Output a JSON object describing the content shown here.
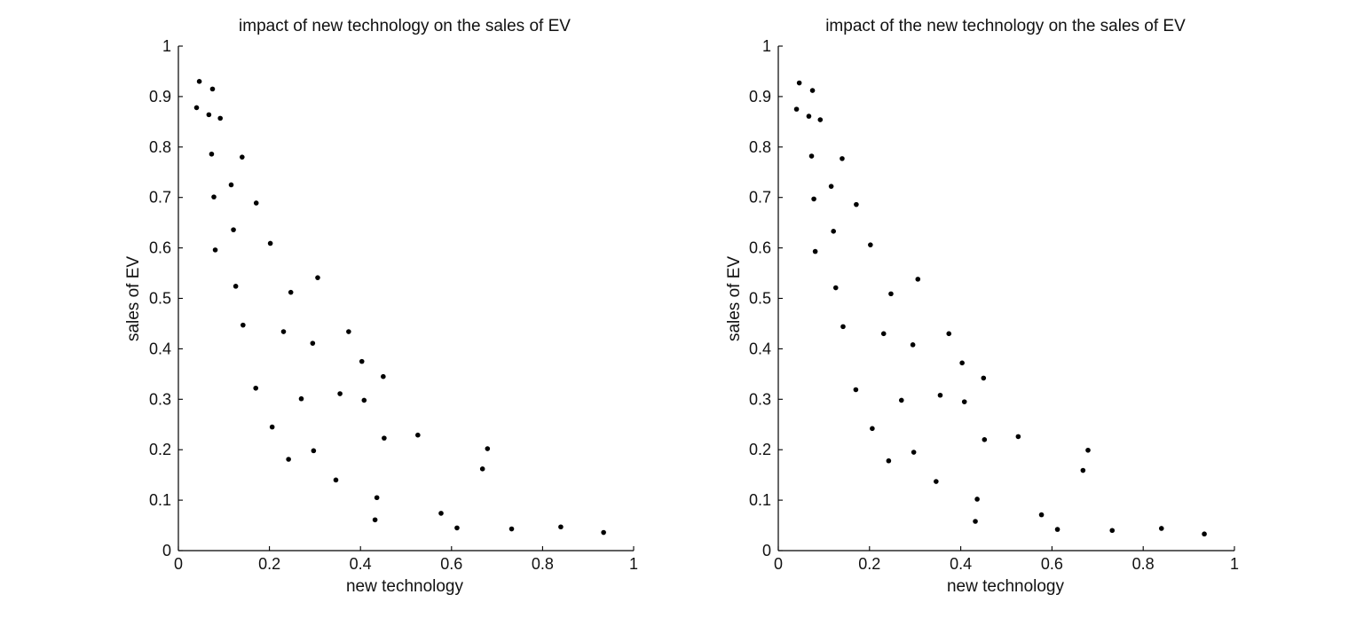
{
  "chart_data": [
    {
      "type": "scatter",
      "title": "impact of new technology on the sales of EV",
      "xlabel": "new technology",
      "ylabel": "sales of EV",
      "xlim": [
        0,
        1
      ],
      "ylim": [
        0,
        1
      ],
      "xticks": [
        "0",
        "0.2",
        "0.4",
        "0.6",
        "0.8",
        "1"
      ],
      "yticks": [
        "0",
        "0.1",
        "0.2",
        "0.3",
        "0.4",
        "0.5",
        "0.6",
        "0.7",
        "0.8",
        "0.9",
        "1"
      ],
      "grid": false,
      "marker_color": "#000000",
      "points": [
        {
          "x": 0.046,
          "y": 0.93
        },
        {
          "x": 0.075,
          "y": 0.915
        },
        {
          "x": 0.04,
          "y": 0.878
        },
        {
          "x": 0.067,
          "y": 0.864
        },
        {
          "x": 0.092,
          "y": 0.857
        },
        {
          "x": 0.073,
          "y": 0.786
        },
        {
          "x": 0.14,
          "y": 0.78
        },
        {
          "x": 0.116,
          "y": 0.725
        },
        {
          "x": 0.078,
          "y": 0.701
        },
        {
          "x": 0.171,
          "y": 0.689
        },
        {
          "x": 0.121,
          "y": 0.636
        },
        {
          "x": 0.202,
          "y": 0.609
        },
        {
          "x": 0.081,
          "y": 0.596
        },
        {
          "x": 0.306,
          "y": 0.541
        },
        {
          "x": 0.126,
          "y": 0.524
        },
        {
          "x": 0.247,
          "y": 0.512
        },
        {
          "x": 0.142,
          "y": 0.447
        },
        {
          "x": 0.231,
          "y": 0.434
        },
        {
          "x": 0.374,
          "y": 0.434
        },
        {
          "x": 0.295,
          "y": 0.411
        },
        {
          "x": 0.403,
          "y": 0.375
        },
        {
          "x": 0.45,
          "y": 0.345
        },
        {
          "x": 0.17,
          "y": 0.322
        },
        {
          "x": 0.355,
          "y": 0.311
        },
        {
          "x": 0.27,
          "y": 0.301
        },
        {
          "x": 0.408,
          "y": 0.298
        },
        {
          "x": 0.206,
          "y": 0.245
        },
        {
          "x": 0.526,
          "y": 0.229
        },
        {
          "x": 0.452,
          "y": 0.223
        },
        {
          "x": 0.679,
          "y": 0.202
        },
        {
          "x": 0.297,
          "y": 0.198
        },
        {
          "x": 0.242,
          "y": 0.181
        },
        {
          "x": 0.668,
          "y": 0.162
        },
        {
          "x": 0.346,
          "y": 0.14
        },
        {
          "x": 0.436,
          "y": 0.105
        },
        {
          "x": 0.577,
          "y": 0.074
        },
        {
          "x": 0.432,
          "y": 0.061
        },
        {
          "x": 0.612,
          "y": 0.045
        },
        {
          "x": 0.732,
          "y": 0.043
        },
        {
          "x": 0.84,
          "y": 0.047
        },
        {
          "x": 0.934,
          "y": 0.036
        }
      ]
    },
    {
      "type": "scatter",
      "title": "impact of the new technology on the sales of EV",
      "xlabel": "new technology",
      "ylabel": "sales of EV",
      "xlim": [
        0,
        1
      ],
      "ylim": [
        0,
        1
      ],
      "xticks": [
        "0",
        "0.2",
        "0.4",
        "0.6",
        "0.8",
        "1"
      ],
      "yticks": [
        "0",
        "0.1",
        "0.2",
        "0.3",
        "0.4",
        "0.5",
        "0.6",
        "0.7",
        "0.8",
        "0.9",
        "1"
      ],
      "grid": false,
      "marker_color": "#000000",
      "points": [
        {
          "x": 0.046,
          "y": 0.927
        },
        {
          "x": 0.075,
          "y": 0.912
        },
        {
          "x": 0.04,
          "y": 0.875
        },
        {
          "x": 0.067,
          "y": 0.861
        },
        {
          "x": 0.092,
          "y": 0.854
        },
        {
          "x": 0.073,
          "y": 0.782
        },
        {
          "x": 0.14,
          "y": 0.777
        },
        {
          "x": 0.116,
          "y": 0.722
        },
        {
          "x": 0.078,
          "y": 0.697
        },
        {
          "x": 0.171,
          "y": 0.686
        },
        {
          "x": 0.121,
          "y": 0.633
        },
        {
          "x": 0.202,
          "y": 0.606
        },
        {
          "x": 0.081,
          "y": 0.593
        },
        {
          "x": 0.306,
          "y": 0.538
        },
        {
          "x": 0.126,
          "y": 0.521
        },
        {
          "x": 0.247,
          "y": 0.509
        },
        {
          "x": 0.142,
          "y": 0.444
        },
        {
          "x": 0.231,
          "y": 0.43
        },
        {
          "x": 0.374,
          "y": 0.43
        },
        {
          "x": 0.295,
          "y": 0.408
        },
        {
          "x": 0.403,
          "y": 0.372
        },
        {
          "x": 0.45,
          "y": 0.342
        },
        {
          "x": 0.17,
          "y": 0.319
        },
        {
          "x": 0.355,
          "y": 0.308
        },
        {
          "x": 0.27,
          "y": 0.298
        },
        {
          "x": 0.408,
          "y": 0.295
        },
        {
          "x": 0.206,
          "y": 0.242
        },
        {
          "x": 0.526,
          "y": 0.226
        },
        {
          "x": 0.452,
          "y": 0.22
        },
        {
          "x": 0.679,
          "y": 0.199
        },
        {
          "x": 0.297,
          "y": 0.195
        },
        {
          "x": 0.242,
          "y": 0.178
        },
        {
          "x": 0.668,
          "y": 0.159
        },
        {
          "x": 0.346,
          "y": 0.137
        },
        {
          "x": 0.436,
          "y": 0.102
        },
        {
          "x": 0.577,
          "y": 0.071
        },
        {
          "x": 0.432,
          "y": 0.058
        },
        {
          "x": 0.612,
          "y": 0.042
        },
        {
          "x": 0.732,
          "y": 0.04
        },
        {
          "x": 0.84,
          "y": 0.044
        },
        {
          "x": 0.934,
          "y": 0.033
        }
      ]
    }
  ]
}
